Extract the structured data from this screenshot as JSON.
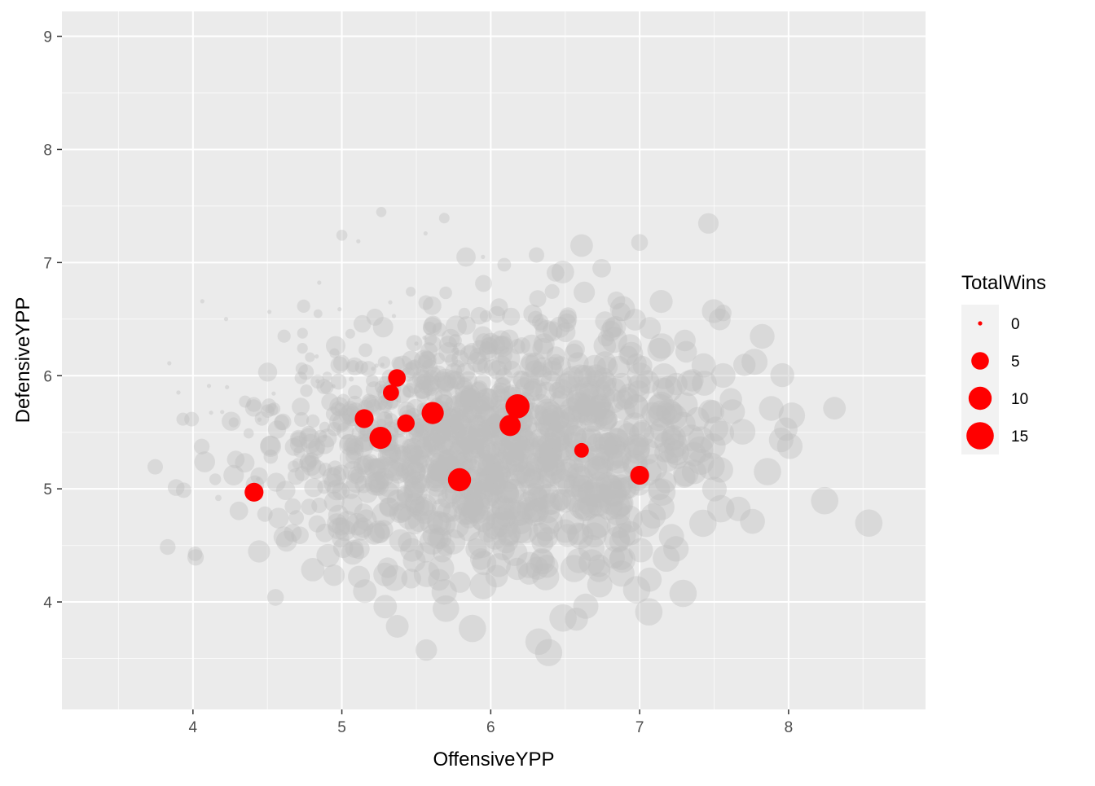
{
  "chart_data": {
    "type": "scatter",
    "title": "",
    "xlabel": "OffensiveYPP",
    "ylabel": "DefensiveYPP",
    "xlim": [
      3.12,
      8.92
    ],
    "ylim": [
      3.05,
      9.22
    ],
    "x_ticks": [
      4,
      5,
      6,
      7,
      8
    ],
    "y_ticks": [
      4,
      5,
      6,
      7,
      8,
      9
    ],
    "grid": true,
    "legend": {
      "title": "TotalWins",
      "placement": "right",
      "entries": [
        {
          "label": "0",
          "value": 0
        },
        {
          "label": "5",
          "value": 5
        },
        {
          "label": "10",
          "value": 10
        },
        {
          "label": "15",
          "value": 15
        }
      ]
    },
    "colors": {
      "panel": "#EBEBEB",
      "grid": "#FFFFFF",
      "highlight": "#FF0000",
      "background_points": "#BEBEBE",
      "axis_text": "#4D4D4D"
    },
    "background_point_count": 1200,
    "highlighted_points": [
      {
        "x": 4.41,
        "y": 4.97,
        "wins": 6
      },
      {
        "x": 5.15,
        "y": 5.62,
        "wins": 6
      },
      {
        "x": 5.26,
        "y": 5.45,
        "wins": 9
      },
      {
        "x": 5.33,
        "y": 5.85,
        "wins": 4
      },
      {
        "x": 5.37,
        "y": 5.98,
        "wins": 5
      },
      {
        "x": 5.43,
        "y": 5.58,
        "wins": 5
      },
      {
        "x": 5.61,
        "y": 5.67,
        "wins": 9
      },
      {
        "x": 5.79,
        "y": 5.08,
        "wins": 10
      },
      {
        "x": 6.13,
        "y": 5.56,
        "wins": 8
      },
      {
        "x": 6.18,
        "y": 5.73,
        "wins": 11
      },
      {
        "x": 6.61,
        "y": 5.34,
        "wins": 3
      },
      {
        "x": 7.0,
        "y": 5.12,
        "wins": 6
      }
    ]
  }
}
